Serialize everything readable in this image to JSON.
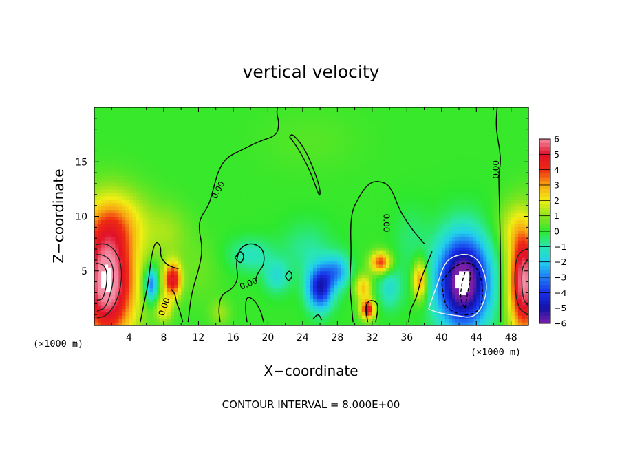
{
  "chart_data": {
    "type": "heatmap",
    "title": "vertical velocity",
    "xlabel": "X−coordinate",
    "ylabel": "Z−coordinate",
    "x_unit_label": "(×1000 m)",
    "x_unit_label_right": "(×1000 m)",
    "xlim": [
      0,
      50
    ],
    "ylim": [
      0,
      20
    ],
    "x_ticks": [
      4,
      8,
      12,
      16,
      20,
      24,
      28,
      32,
      36,
      40,
      44,
      48
    ],
    "x_tick_labels": [
      "4",
      "8",
      "12",
      "16",
      "20",
      "24",
      "28",
      "32",
      "36",
      "40",
      "44",
      "48"
    ],
    "y_ticks": [
      5,
      10,
      15
    ],
    "y_tick_labels": [
      "5",
      "10",
      "15"
    ],
    "colorbar": {
      "min": -6,
      "max": 6,
      "tick_labels": [
        "6",
        "5",
        "4",
        "3",
        "2",
        "1",
        "0",
        "−1",
        "−2",
        "−3",
        "−4",
        "−5",
        "−6"
      ],
      "stops": [
        {
          "value": -6,
          "color": "#7a1fa8"
        },
        {
          "value": -5,
          "color": "#1212a8"
        },
        {
          "value": -4,
          "color": "#1830e8"
        },
        {
          "value": -3,
          "color": "#1f7cf4"
        },
        {
          "value": -2,
          "color": "#22cfee"
        },
        {
          "value": -1,
          "color": "#29e7b0"
        },
        {
          "value": 0,
          "color": "#2de82d"
        },
        {
          "value": 1,
          "color": "#8fe41d"
        },
        {
          "value": 2,
          "color": "#f0ee14"
        },
        {
          "value": 3,
          "color": "#f7a812"
        },
        {
          "value": 4,
          "color": "#ee2a12"
        },
        {
          "value": 5,
          "color": "#e01028"
        },
        {
          "value": 6,
          "color": "#f48ea6"
        }
      ]
    },
    "background_value": 0.1,
    "features": [
      {
        "x": 1.5,
        "z": 4.0,
        "w": 6.5,
        "sx": 3.2,
        "sz": 5.5
      },
      {
        "x": 2.5,
        "z": 9.5,
        "w": 1.8,
        "sx": 4.0,
        "sz": 3.0
      },
      {
        "x": 9.0,
        "z": 4.2,
        "w": 4.8,
        "sx": 1.0,
        "sz": 1.6
      },
      {
        "x": 6.5,
        "z": 3.8,
        "w": -3.5,
        "sx": 0.8,
        "sz": 1.6
      },
      {
        "x": 8.0,
        "z": 1.5,
        "w": 2.0,
        "sx": 1.0,
        "sz": 1.2
      },
      {
        "x": 8.5,
        "z": 8.5,
        "w": 0.9,
        "sx": 2.5,
        "sz": 2.5
      },
      {
        "x": 18.0,
        "z": 6.5,
        "w": -1.3,
        "sx": 2.5,
        "sz": 1.5
      },
      {
        "x": 21.0,
        "z": 4.5,
        "w": -1.5,
        "sx": 1.5,
        "sz": 1.5
      },
      {
        "x": 26.0,
        "z": 3.5,
        "w": -4.8,
        "sx": 1.5,
        "sz": 2.0
      },
      {
        "x": 28.0,
        "z": 5.0,
        "w": -2.5,
        "sx": 1.5,
        "sz": 1.5
      },
      {
        "x": 24.5,
        "z": 7.0,
        "w": -0.9,
        "sx": 3.0,
        "sz": 2.5
      },
      {
        "x": 31.5,
        "z": 1.5,
        "w": 4.8,
        "sx": 0.8,
        "sz": 0.9
      },
      {
        "x": 33.0,
        "z": 5.8,
        "w": 4.0,
        "sx": 1.2,
        "sz": 1.0
      },
      {
        "x": 31.0,
        "z": 3.5,
        "w": 2.5,
        "sx": 1.0,
        "sz": 1.2
      },
      {
        "x": 37.5,
        "z": 4.2,
        "w": 3.5,
        "sx": 0.8,
        "sz": 1.8
      },
      {
        "x": 34.0,
        "z": 3.5,
        "w": -1.5,
        "sx": 1.5,
        "sz": 2.0
      },
      {
        "x": 42.5,
        "z": 4.0,
        "w": -7.0,
        "sx": 3.0,
        "sz": 4.2
      },
      {
        "x": 36.5,
        "z": 8.0,
        "w": -0.6,
        "sx": 2.0,
        "sz": 3.0
      },
      {
        "x": 49.5,
        "z": 4.0,
        "w": 6.0,
        "sx": 1.8,
        "sz": 5.0
      },
      {
        "x": 48.0,
        "z": 9.0,
        "w": 1.0,
        "sx": 2.0,
        "sz": 2.5
      },
      {
        "x": 14.5,
        "z": 1.2,
        "w": 1.0,
        "sx": 1.2,
        "sz": 1.2
      },
      {
        "x": 12.0,
        "z": 5.0,
        "w": 0.5,
        "sx": 2.5,
        "sz": 3.0
      },
      {
        "x": 25.0,
        "z": 17.0,
        "w": 0.3,
        "sx": 6.0,
        "sz": 3.0
      }
    ],
    "contour_lines": [
      {
        "style": "solid",
        "points": [
          [
            46.8,
            0.3
          ],
          [
            46.8,
            5
          ],
          [
            46.7,
            10
          ],
          [
            46.6,
            13
          ],
          [
            46.6,
            14
          ],
          [
            46.8,
            15
          ],
          [
            46.7,
            16
          ],
          [
            46.5,
            17
          ],
          [
            46.3,
            18
          ],
          [
            46.3,
            19
          ],
          [
            46.4,
            20
          ]
        ]
      },
      {
        "style": "solid",
        "points": [
          [
            10.8,
            0.3
          ],
          [
            11.2,
            3
          ],
          [
            12.0,
            5
          ],
          [
            12.5,
            7
          ],
          [
            12.0,
            9
          ],
          [
            12.3,
            10
          ],
          [
            13.2,
            11
          ],
          [
            13.8,
            12.8
          ],
          [
            14.3,
            14.2
          ],
          [
            15.2,
            15.4
          ],
          [
            17.0,
            16.1
          ],
          [
            19.0,
            16.9
          ],
          [
            21.0,
            17.4
          ],
          [
            21.3,
            18.5
          ],
          [
            21.0,
            19.5
          ],
          [
            21.1,
            20
          ]
        ]
      },
      {
        "style": "solid",
        "points": [
          [
            22.5,
            17.3
          ],
          [
            23.5,
            16.2
          ],
          [
            24.8,
            14.3
          ],
          [
            25.7,
            12.3
          ],
          [
            26.0,
            11.8
          ],
          [
            26.0,
            12.6
          ],
          [
            25.2,
            14.5
          ],
          [
            24.1,
            16.4
          ],
          [
            22.8,
            17.6
          ],
          [
            22.5,
            17.3
          ]
        ]
      },
      {
        "style": "solid",
        "points": [
          [
            29.8,
            0.3
          ],
          [
            29.6,
            2
          ],
          [
            29.4,
            4
          ],
          [
            29.6,
            6.5
          ],
          [
            29.5,
            9
          ],
          [
            29.7,
            10.5
          ],
          [
            30.3,
            11.5
          ],
          [
            31.2,
            12.7
          ],
          [
            32.3,
            13.3
          ],
          [
            33.8,
            13.0
          ],
          [
            34.5,
            12.0
          ],
          [
            35.2,
            10.5
          ],
          [
            36.6,
            8.8
          ],
          [
            38.0,
            7.5
          ]
        ]
      },
      {
        "style": "solid",
        "points": [
          [
            14.5,
            0.3
          ],
          [
            14.3,
            1.5
          ],
          [
            14.6,
            2.8
          ],
          [
            15.8,
            3.3
          ],
          [
            16.6,
            4.2
          ],
          [
            16.3,
            5.8
          ],
          [
            16.8,
            7.2
          ],
          [
            18.2,
            7.6
          ],
          [
            19.5,
            7.0
          ],
          [
            19.6,
            5.6
          ],
          [
            18.8,
            4.8
          ],
          [
            18.5,
            4.0
          ]
        ]
      },
      {
        "style": "solid",
        "points": [
          [
            16.2,
            6.2
          ],
          [
            16.8,
            6.9
          ],
          [
            17.3,
            6.4
          ],
          [
            16.9,
            5.6
          ],
          [
            16.2,
            6.2
          ]
        ]
      },
      {
        "style": "solid",
        "points": [
          [
            10.2,
            0.3
          ],
          [
            9.8,
            1.5
          ],
          [
            9.5,
            2.0
          ],
          [
            9.3,
            2.9
          ],
          [
            8.9,
            3.3
          ]
        ]
      },
      {
        "style": "solid",
        "points": [
          [
            5.3,
            0.3
          ],
          [
            5.8,
            2.3
          ],
          [
            6.2,
            3.8
          ],
          [
            6.6,
            6.5
          ],
          [
            7.1,
            7.8
          ],
          [
            7.7,
            7.2
          ],
          [
            7.6,
            6.3
          ],
          [
            8.4,
            5.5
          ],
          [
            9.7,
            5.2
          ]
        ]
      },
      {
        "style": "solid",
        "points": [
          [
            19.5,
            0.3
          ],
          [
            19.2,
            1.3
          ],
          [
            18.4,
            2.4
          ],
          [
            17.5,
            2.7
          ],
          [
            17.4,
            1.3
          ],
          [
            17.6,
            0.3
          ]
        ]
      },
      {
        "style": "solid",
        "points": [
          [
            31.5,
            0.3
          ],
          [
            31.2,
            1.8
          ],
          [
            31.8,
            2.4
          ],
          [
            32.8,
            2.0
          ],
          [
            32.4,
            0.3
          ]
        ]
      },
      {
        "style": "solid",
        "points": [
          [
            22.0,
            4.5
          ],
          [
            22.4,
            5.1
          ],
          [
            22.9,
            4.6
          ],
          [
            22.4,
            4.0
          ],
          [
            22.0,
            4.5
          ]
        ]
      },
      {
        "style": "solid",
        "points": [
          [
            25.2,
            0.6
          ],
          [
            25.8,
            1.1
          ],
          [
            26.2,
            0.5
          ]
        ]
      },
      {
        "style": "solid",
        "points": [
          [
            36.2,
            0.3
          ],
          [
            36.4,
            1.5
          ],
          [
            37.1,
            2.5
          ],
          [
            37.6,
            4.2
          ],
          [
            38.2,
            5.4
          ],
          [
            38.9,
            6.8
          ]
        ]
      },
      {
        "style": "solid",
        "color": "#222222",
        "points": [
          [
            0.3,
            0.7
          ],
          [
            1.2,
            0.8
          ],
          [
            2.2,
            1.6
          ],
          [
            3.0,
            3.2
          ],
          [
            3.2,
            5.0
          ],
          [
            2.8,
            6.4
          ],
          [
            1.8,
            7.4
          ],
          [
            0.8,
            7.5
          ],
          [
            0.2,
            7.4
          ]
        ]
      },
      {
        "style": "solid",
        "color": "#222222",
        "points": [
          [
            0.3,
            1.3
          ],
          [
            1.3,
            1.6
          ],
          [
            2.0,
            3.2
          ],
          [
            2.3,
            4.8
          ],
          [
            1.9,
            6.0
          ],
          [
            1.0,
            6.5
          ],
          [
            0.2,
            6.5
          ]
        ]
      },
      {
        "style": "solid",
        "color": "#111111",
        "points": [
          [
            0.3,
            2.3
          ],
          [
            1.0,
            2.4
          ],
          [
            1.4,
            3.6
          ],
          [
            1.5,
            4.8
          ],
          [
            1.1,
            5.6
          ],
          [
            0.2,
            5.7
          ]
        ]
      },
      {
        "style": "solid",
        "color": "#222222",
        "points": [
          [
            50,
            1.0
          ],
          [
            49.0,
            1.4
          ],
          [
            48.5,
            2.8
          ],
          [
            48.4,
            4.6
          ],
          [
            48.6,
            6.2
          ],
          [
            49.3,
            6.9
          ],
          [
            50,
            7.0
          ]
        ]
      },
      {
        "style": "solid",
        "color": "#222222",
        "points": [
          [
            50,
            1.8
          ],
          [
            49.4,
            2.3
          ],
          [
            49.2,
            4.0
          ],
          [
            49.3,
            5.5
          ],
          [
            50,
            6.0
          ]
        ]
      },
      {
        "style": "solid",
        "color": "#f2f2f2",
        "points": [
          [
            38.5,
            1.5
          ],
          [
            39.6,
            4.0
          ],
          [
            40.4,
            5.8
          ],
          [
            41.5,
            6.4
          ],
          [
            43.0,
            6.6
          ],
          [
            44.3,
            6.0
          ],
          [
            45.2,
            4.2
          ],
          [
            45.1,
            2.6
          ],
          [
            44.3,
            1.2
          ],
          [
            43.3,
            0.7
          ],
          [
            41.9,
            0.9
          ],
          [
            40.7,
            1.0
          ],
          [
            39.5,
            1.2
          ],
          [
            38.5,
            1.5
          ]
        ]
      },
      {
        "style": "dashed",
        "points": [
          [
            40.0,
            4.0
          ],
          [
            41.2,
            5.3
          ],
          [
            42.8,
            5.9
          ],
          [
            44.2,
            5.3
          ],
          [
            44.8,
            3.4
          ],
          [
            44.5,
            1.5
          ],
          [
            43.2,
            0.9
          ],
          [
            41.7,
            1.1
          ],
          [
            40.4,
            1.7
          ],
          [
            40.0,
            4.0
          ]
        ]
      },
      {
        "style": "dashed",
        "points": [
          [
            42.7,
            1.6
          ],
          [
            43.1,
            3.4
          ],
          [
            43.4,
            4.8
          ],
          [
            42.9,
            5.3
          ],
          [
            42.4,
            4.2
          ],
          [
            42.1,
            2.4
          ],
          [
            42.7,
            1.6
          ]
        ]
      }
    ],
    "contour_labels": [
      {
        "text": "0.00",
        "x": 14.3,
        "z": 12.4,
        "angle": -62
      },
      {
        "text": "0.00",
        "x": 33.6,
        "z": 9.4,
        "angle": 90
      },
      {
        "text": "0.00",
        "x": 46.3,
        "z": 14.3,
        "angle": -90
      },
      {
        "text": "0.00",
        "x": 17.8,
        "z": 3.8,
        "angle": -22
      },
      {
        "text": "0.00",
        "x": 8.1,
        "z": 1.7,
        "angle": -70
      }
    ],
    "contour_interval_text": "CONTOUR INTERVAL =  8.000E+00"
  }
}
